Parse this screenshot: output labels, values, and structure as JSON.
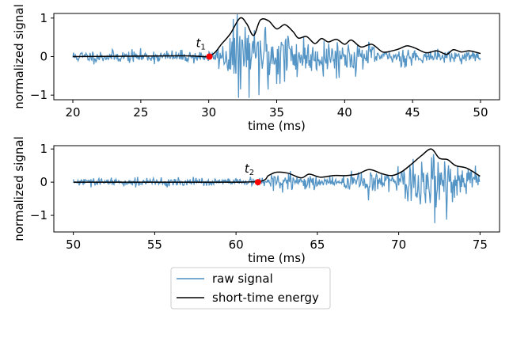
{
  "chart_data": [
    {
      "type": "line",
      "xlabel": "time (ms)",
      "ylabel": "normalized signal",
      "xlim": [
        18.6,
        51.4
      ],
      "ylim": [
        -1.12,
        1.12
      ],
      "xticks": [
        20,
        25,
        30,
        35,
        40,
        45,
        50
      ],
      "yticks": [
        -1,
        0,
        1
      ],
      "grid": false,
      "series": [
        {
          "name": "raw signal",
          "color": "#4c8fc2",
          "t_start": 20,
          "t_end": 50,
          "onset": 30.05,
          "noise_pre": 0.08,
          "seed": 11
        },
        {
          "name": "short-time energy",
          "color": "#000000",
          "x": [
            20,
            28,
            30.05,
            31,
            31.6,
            32.3,
            32.8,
            33.3,
            33.8,
            34.4,
            35.0,
            35.6,
            36.2,
            36.6,
            37.2,
            37.8,
            38.3,
            38.8,
            39.4,
            40.0,
            40.5,
            41.2,
            42.0,
            42.8,
            43.5,
            44.0,
            44.6,
            45.2,
            46.0,
            46.8,
            47.5,
            48.0,
            48.6,
            49.2,
            50
          ],
          "y": [
            0.0,
            0.02,
            0.02,
            0.35,
            0.6,
            1.0,
            0.85,
            0.55,
            0.95,
            0.93,
            0.72,
            0.83,
            0.65,
            0.48,
            0.52,
            0.34,
            0.47,
            0.38,
            0.45,
            0.32,
            0.43,
            0.25,
            0.32,
            0.12,
            0.15,
            0.2,
            0.28,
            0.22,
            0.1,
            0.15,
            0.06,
            0.18,
            0.12,
            0.15,
            0.08
          ]
        }
      ],
      "annotations": [
        {
          "label": "t",
          "subscript": "1",
          "x": 30.05,
          "y": 0.0,
          "marker_color": "#ff0000"
        }
      ]
    },
    {
      "type": "line",
      "xlabel": "time (ms)",
      "ylabel": "normalized signal",
      "xlim": [
        48.8,
        76.2
      ],
      "ylim": [
        -1.5,
        1.1
      ],
      "xticks": [
        50,
        55,
        60,
        65,
        70,
        75
      ],
      "yticks": [
        -1,
        0,
        1
      ],
      "grid": false,
      "series": [
        {
          "name": "raw signal",
          "color": "#4c8fc2",
          "t_start": 50,
          "t_end": 75,
          "onset": 61.35,
          "noise_pre": 0.06,
          "seed": 29
        },
        {
          "name": "short-time energy",
          "color": "#000000",
          "x": [
            50,
            58,
            61.35,
            62.0,
            62.5,
            63.2,
            64.0,
            64.5,
            65.2,
            66.0,
            66.8,
            67.5,
            68.2,
            69.0,
            69.6,
            70.2,
            70.8,
            71.4,
            72.0,
            72.5,
            73.0,
            73.5,
            74.2,
            75
          ],
          "y": [
            0.0,
            0.0,
            0.02,
            0.2,
            0.3,
            0.27,
            0.13,
            0.24,
            0.15,
            0.2,
            0.2,
            0.25,
            0.38,
            0.25,
            0.2,
            0.32,
            0.55,
            0.8,
            1.0,
            0.72,
            0.68,
            0.5,
            0.42,
            0.18
          ]
        }
      ],
      "annotations": [
        {
          "label": "t",
          "subscript": "2",
          "x": 61.35,
          "y": 0.0,
          "marker_color": "#ff0000"
        }
      ]
    }
  ],
  "legend": {
    "placement": "bottom-center",
    "entries": [
      {
        "label": "raw signal",
        "color": "#4c8fc2"
      },
      {
        "label": "short-time energy",
        "color": "#000000"
      }
    ]
  }
}
